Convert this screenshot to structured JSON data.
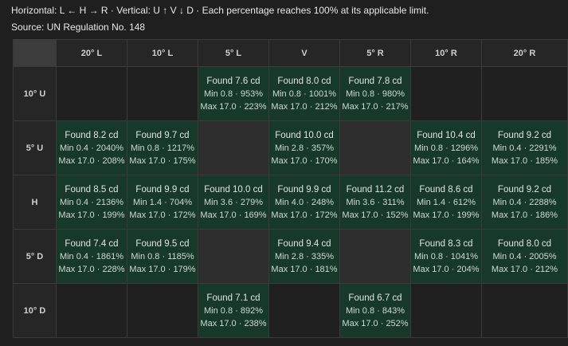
{
  "caption": {
    "line1": "Horizontal: L ← H → R · Vertical: U ↑ V ↓ D · Each percentage reaches 100% at its applicable limit.",
    "line2": "Source: UN Regulation No. 148"
  },
  "columns": [
    "20° L",
    "10° L",
    "5° L",
    "V",
    "5° R",
    "10° R",
    "20° R"
  ],
  "rows": [
    {
      "label": "10° U",
      "cells": [
        {
          "state": "empty"
        },
        {
          "state": "empty"
        },
        {
          "state": "found",
          "l1": "Found 7.6 cd",
          "l2": "Min 0.8 · 953%",
          "l3": "Max 17.0 · 223%"
        },
        {
          "state": "found",
          "l1": "Found 8.0 cd",
          "l2": "Min 0.8 · 1001%",
          "l3": "Max 17.0 · 212%"
        },
        {
          "state": "found",
          "l1": "Found 7.8 cd",
          "l2": "Min 0.8 · 980%",
          "l3": "Max 17.0 · 217%"
        },
        {
          "state": "empty"
        },
        {
          "state": "empty"
        }
      ]
    },
    {
      "label": "5° U",
      "cells": [
        {
          "state": "found",
          "l1": "Found 8.2 cd",
          "l2": "Min 0.4 · 2040%",
          "l3": "Max 17.0 · 208%"
        },
        {
          "state": "found",
          "l1": "Found 9.7 cd",
          "l2": "Min 0.8 · 1217%",
          "l3": "Max 17.0 · 175%"
        },
        {
          "state": "na"
        },
        {
          "state": "found",
          "l1": "Found 10.0 cd",
          "l2": "Min 2.8 · 357%",
          "l3": "Max 17.0 · 170%"
        },
        {
          "state": "na"
        },
        {
          "state": "found",
          "l1": "Found 10.4 cd",
          "l2": "Min 0.8 · 1296%",
          "l3": "Max 17.0 · 164%"
        },
        {
          "state": "found",
          "l1": "Found 9.2 cd",
          "l2": "Min 0.4 · 2291%",
          "l3": "Max 17.0 · 185%"
        }
      ]
    },
    {
      "label": "H",
      "cells": [
        {
          "state": "found",
          "l1": "Found 8.5 cd",
          "l2": "Min 0.4 · 2136%",
          "l3": "Max 17.0 · 199%"
        },
        {
          "state": "found",
          "l1": "Found 9.9 cd",
          "l2": "Min 1.4 · 704%",
          "l3": "Max 17.0 · 172%"
        },
        {
          "state": "found",
          "l1": "Found 10.0 cd",
          "l2": "Min 3.6 · 279%",
          "l3": "Max 17.0 · 169%"
        },
        {
          "state": "found",
          "l1": "Found 9.9 cd",
          "l2": "Min 4.0 · 248%",
          "l3": "Max 17.0 · 172%"
        },
        {
          "state": "found",
          "l1": "Found 11.2 cd",
          "l2": "Min 3.6 · 311%",
          "l3": "Max 17.0 · 152%"
        },
        {
          "state": "found",
          "l1": "Found 8.6 cd",
          "l2": "Min 1.4 · 612%",
          "l3": "Max 17.0 · 199%"
        },
        {
          "state": "found",
          "l1": "Found 9.2 cd",
          "l2": "Min 0.4 · 2288%",
          "l3": "Max 17.0 · 186%"
        }
      ]
    },
    {
      "label": "5° D",
      "cells": [
        {
          "state": "found",
          "l1": "Found 7.4 cd",
          "l2": "Min 0.4 · 1861%",
          "l3": "Max 17.0 · 228%"
        },
        {
          "state": "found",
          "l1": "Found 9.5 cd",
          "l2": "Min 0.8 · 1185%",
          "l3": "Max 17.0 · 179%"
        },
        {
          "state": "na"
        },
        {
          "state": "found",
          "l1": "Found 9.4 cd",
          "l2": "Min 2.8 · 335%",
          "l3": "Max 17.0 · 181%"
        },
        {
          "state": "na"
        },
        {
          "state": "found",
          "l1": "Found 8.3 cd",
          "l2": "Min 0.8 · 1041%",
          "l3": "Max 17.0 · 204%"
        },
        {
          "state": "found",
          "l1": "Found 8.0 cd",
          "l2": "Min 0.4 · 2005%",
          "l3": "Max 17.0 · 212%"
        }
      ]
    },
    {
      "label": "10° D",
      "cells": [
        {
          "state": "empty"
        },
        {
          "state": "empty"
        },
        {
          "state": "found",
          "l1": "Found 7.1 cd",
          "l2": "Min 0.8 · 892%",
          "l3": "Max 17.0 · 238%"
        },
        {
          "state": "empty"
        },
        {
          "state": "found",
          "l1": "Found 6.7 cd",
          "l2": "Min 0.8 · 843%",
          "l3": "Max 17.0 · 252%"
        },
        {
          "state": "empty"
        },
        {
          "state": "empty"
        }
      ]
    }
  ],
  "colors": {
    "background": "#1f1f1f",
    "found_cell": "#17392c",
    "unavailable_cell": "#2e2e2e",
    "empty_cell": "#202020",
    "corner_cell": "#3c3c3c",
    "grid_line": "#3a3a3a"
  }
}
